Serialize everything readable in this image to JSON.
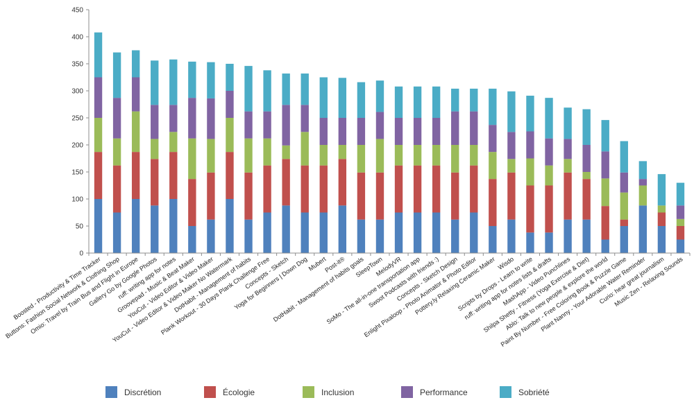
{
  "chart_data": {
    "type": "bar",
    "stacked": true,
    "title": "",
    "xlabel": "",
    "ylabel": "",
    "ylim": [
      0,
      450
    ],
    "yticks": [
      0,
      50,
      100,
      150,
      200,
      250,
      300,
      350,
      400,
      450
    ],
    "grid": false,
    "legend_position": "bottom",
    "categories": [
      "Boosted - Productivity & Time Tracker",
      "Buttons: Fashion Social Network & Clothing Shop",
      "Omio: Travel by Train Bus and Flight in Europe",
      "Gallery Go by Google Photos",
      "ruff: writing app for notes",
      "Groovepad - Music & Beat Maker",
      "YouCut - Video Editor & Video Maker",
      "YouCut - Video Editor & Video Maker No Watermark",
      "DotHabit - Management of habits",
      "Plank Workout - 30 Days Plank Challenge Free",
      "Concepts - Sketch",
      "Yoga for Beginners | Down Dog",
      "Mubert",
      "Post-it®",
      "DotHabit - Management of habits goals",
      "SleepTown",
      "MelodyVR",
      "SoMo - The all-in-one transportation app",
      "Swoot Podcasts with friends :)",
      "Concepts - Sketch Design",
      "Enlight Pixaloop - Photo Animator & Photo Editor",
      "Pottery.ly Relaxing Ceramic Maker",
      "Wisdo",
      "Scripts by Drops - Learn to write",
      "ruff: writing app for notes lists & drafts",
      "MashApp - Video Punchlines",
      "Shilpa Shetty - Fitness (Yoga Exercise & Diet)",
      "Ablo: Talk to new people & explore the world",
      "Paint By Number - Free Coloring Book & Puzzle Game",
      "Plant Nanny - Your Adorable Water Reminder",
      "Curio: hear great journalism",
      "Music Zen - Relaxing Sounds"
    ],
    "series": [
      {
        "name": "Discrétion",
        "color": "#4f81bd",
        "values": [
          100,
          75,
          100,
          88,
          100,
          50,
          62,
          100,
          62,
          75,
          88,
          75,
          75,
          88,
          62,
          62,
          75,
          75,
          75,
          62,
          75,
          50,
          62,
          38,
          38,
          62,
          62,
          25,
          50,
          88,
          50,
          25
        ]
      },
      {
        "name": "Écologie",
        "color": "#c0504d",
        "values": [
          87,
          87,
          87,
          86,
          87,
          87,
          87,
          87,
          87,
          87,
          86,
          87,
          87,
          86,
          87,
          87,
          87,
          87,
          87,
          87,
          87,
          87,
          87,
          87,
          87,
          87,
          75,
          62,
          12,
          0,
          25,
          25
        ]
      },
      {
        "name": "Inclusion",
        "color": "#9bbb59",
        "values": [
          63,
          50,
          75,
          37,
          37,
          75,
          62,
          63,
          63,
          50,
          25,
          62,
          38,
          26,
          51,
          62,
          38,
          38,
          38,
          51,
          38,
          50,
          25,
          50,
          37,
          25,
          13,
          51,
          50,
          37,
          13,
          13
        ]
      },
      {
        "name": "Performance",
        "color": "#8064a2",
        "values": [
          75,
          75,
          63,
          63,
          50,
          75,
          75,
          50,
          50,
          50,
          75,
          50,
          50,
          50,
          50,
          50,
          50,
          50,
          50,
          62,
          62,
          50,
          50,
          50,
          50,
          37,
          50,
          50,
          37,
          12,
          0,
          25
        ]
      },
      {
        "name": "Sobriété",
        "color": "#4bacc6",
        "values": [
          83,
          84,
          50,
          82,
          84,
          67,
          67,
          50,
          84,
          76,
          58,
          58,
          75,
          74,
          66,
          58,
          58,
          58,
          58,
          42,
          42,
          67,
          75,
          66,
          75,
          58,
          66,
          58,
          58,
          33,
          58,
          42
        ]
      }
    ]
  }
}
